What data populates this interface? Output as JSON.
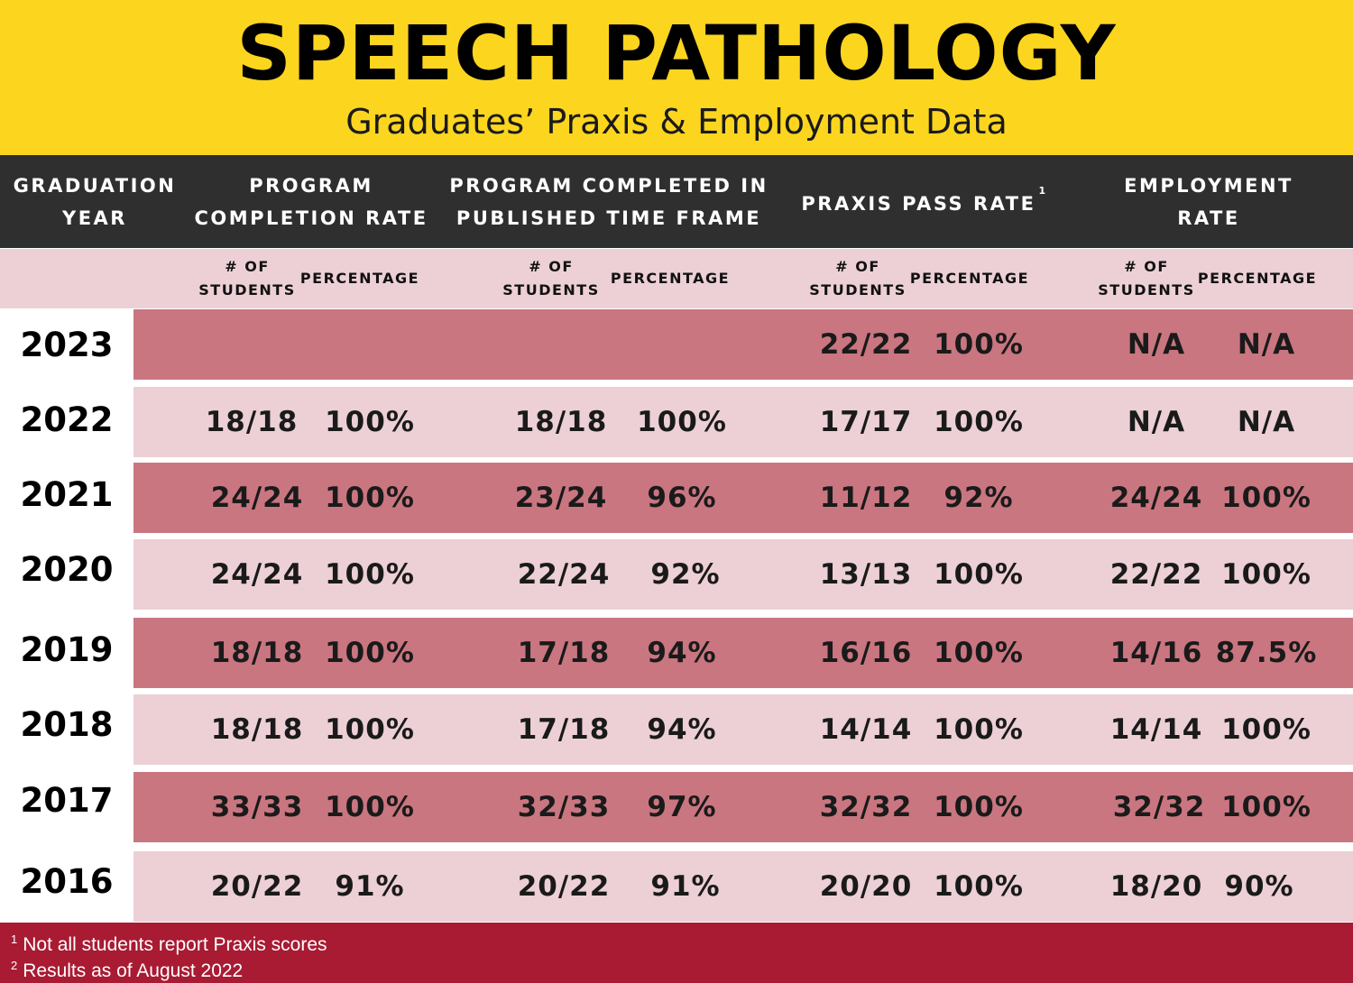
{
  "title": "SPEECH PATHOLOGY",
  "subtitle": "Graduates’ Praxis & Employment Data",
  "headers": {
    "year_line1": "GRADUATION",
    "year_line2": "YEAR",
    "completion_line1": "PROGRAM",
    "completion_line2": "COMPLETION RATE",
    "timeframe_line1": "PROGRAM COMPLETED IN",
    "timeframe_line2": "PUBLISHED TIME FRAME",
    "praxis": "PRAXIS PASS RATE",
    "praxis_sup": "1",
    "employment_line1": "EMPLOYMENT",
    "employment_line2": "RATE"
  },
  "subheaders": {
    "students_line1": "# OF",
    "students_line2": "STUDENTS",
    "percentage": "PERCENTAGE"
  },
  "rows": [
    {
      "year": "2023",
      "comp_n": "",
      "comp_p": "",
      "time_n": "",
      "time_p": "",
      "praxis_n": "22/22",
      "praxis_p": "100%",
      "emp_n": "N/A",
      "emp_p": "N/A"
    },
    {
      "year": "2022",
      "comp_n": "18/18",
      "comp_p": "100%",
      "time_n": "18/18",
      "time_p": "100%",
      "praxis_n": "17/17",
      "praxis_p": "100%",
      "emp_n": "N/A",
      "emp_p": "N/A"
    },
    {
      "year": "2021",
      "comp_n": "24/24",
      "comp_p": "100%",
      "time_n": "23/24",
      "time_p": "96%",
      "praxis_n": "11/12",
      "praxis_p": "92%",
      "emp_n": "24/24",
      "emp_p": "100%"
    },
    {
      "year": "2020",
      "comp_n": "24/24",
      "comp_p": "100%",
      "time_n": "22/24",
      "time_p": "92%",
      "praxis_n": "13/13",
      "praxis_p": "100%",
      "emp_n": "22/22",
      "emp_p": "100%"
    },
    {
      "year": "2019",
      "comp_n": "18/18",
      "comp_p": "100%",
      "time_n": "17/18",
      "time_p": "94%",
      "praxis_n": "16/16",
      "praxis_p": "100%",
      "emp_n": "14/16",
      "emp_p": "87.5%"
    },
    {
      "year": "2018",
      "comp_n": "18/18",
      "comp_p": "100%",
      "time_n": "17/18",
      "time_p": "94%",
      "praxis_n": "14/14",
      "praxis_p": "100%",
      "emp_n": "14/14",
      "emp_p": "100%"
    },
    {
      "year": "2017",
      "comp_n": "33/33",
      "comp_p": "100%",
      "time_n": "32/33",
      "time_p": "97%",
      "praxis_n": "32/32",
      "praxis_p": "100%",
      "emp_n": "32/32",
      "emp_p": "100%"
    },
    {
      "year": "2016",
      "comp_n": "20/22",
      "comp_p": "91%",
      "time_n": "20/22",
      "time_p": "91%",
      "praxis_n": "20/20",
      "praxis_p": "100%",
      "emp_n": "18/20",
      "emp_p": "90%"
    }
  ],
  "footnotes": [
    {
      "mark": "1",
      "text": "Not all students report Praxis scores"
    },
    {
      "mark": "2",
      "text": "Results as of August 2022"
    }
  ],
  "colors": {
    "banner": "#fcd51f",
    "header": "#2f2f2f",
    "row_dark": "#c97680",
    "row_light": "#ecd0d6",
    "footer": "#a81b33"
  }
}
